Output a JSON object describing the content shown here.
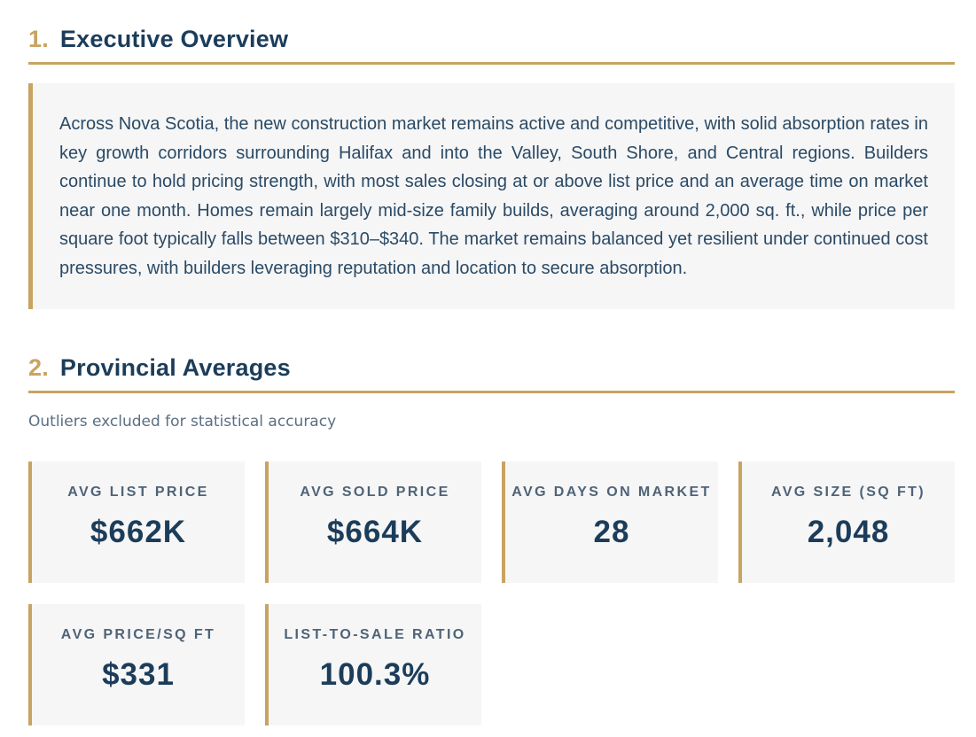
{
  "sections": [
    {
      "number": "1.",
      "title": "Executive Overview"
    },
    {
      "number": "2.",
      "title": "Provincial Averages"
    }
  ],
  "overview": {
    "text": "Across Nova Scotia, the new construction market remains active and competitive, with solid absorption rates in key growth corridors surrounding Halifax and into the Valley, South Shore, and Central regions. Builders continue to hold pricing strength, with most sales closing at or above list price and an average time on market near one month. Homes remain largely mid-size family builds, averaging around 2,000 sq. ft., while price per square foot typically falls between $310–$340. The market remains balanced yet resilient under continued cost pressures, with builders leveraging reputation and location to secure absorption."
  },
  "averages": {
    "note": "Outliers excluded for statistical accuracy",
    "metrics": [
      {
        "label": "AVG LIST PRICE",
        "value": "$662K"
      },
      {
        "label": "AVG SOLD PRICE",
        "value": "$664K"
      },
      {
        "label": "AVG DAYS ON MARKET",
        "value": "28"
      },
      {
        "label": "AVG SIZE (SQ FT)",
        "value": "2,048"
      },
      {
        "label": "AVG PRICE/SQ FT",
        "value": "$331"
      },
      {
        "label": "LIST-TO-SALE RATIO",
        "value": "100.3%"
      }
    ]
  },
  "colors": {
    "accent": "#c8a362",
    "heading": "#1c3d5a",
    "card_background": "#f6f6f6"
  }
}
